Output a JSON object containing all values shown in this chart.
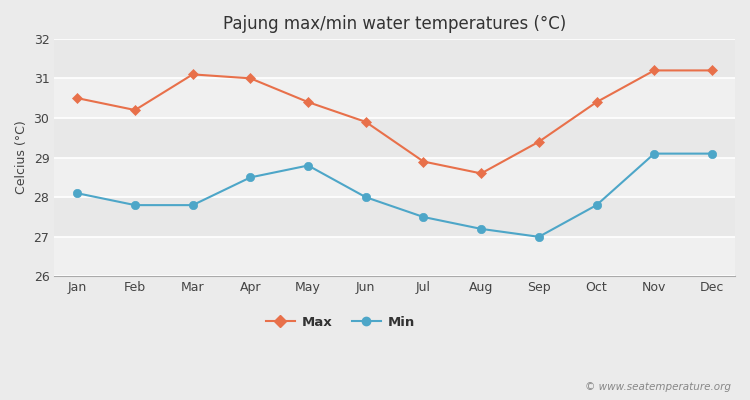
{
  "title": "Pajung max/min water temperatures (°C)",
  "ylabel": "Celcius (°C)",
  "months": [
    "Jan",
    "Feb",
    "Mar",
    "Apr",
    "May",
    "Jun",
    "Jul",
    "Aug",
    "Sep",
    "Oct",
    "Nov",
    "Dec"
  ],
  "max_values": [
    30.5,
    30.2,
    31.1,
    31.0,
    30.4,
    29.9,
    28.9,
    28.6,
    29.4,
    30.4,
    31.2,
    31.2
  ],
  "min_values": [
    28.1,
    27.8,
    27.8,
    28.5,
    28.8,
    28.0,
    27.5,
    27.2,
    27.0,
    27.8,
    29.1,
    29.1
  ],
  "max_color": "#e8704a",
  "min_color": "#4da6c8",
  "outer_bg": "#ebebeb",
  "plot_bg": "#f5f5f5",
  "band_colors": [
    "#f0f0f0",
    "#e8e8e8"
  ],
  "grid_color": "#e0e0e0",
  "ylim": [
    26,
    32
  ],
  "yticks": [
    26,
    27,
    28,
    29,
    30,
    31,
    32
  ],
  "watermark": "© www.seatemperature.org",
  "max_label": "Max",
  "min_label": "Min"
}
